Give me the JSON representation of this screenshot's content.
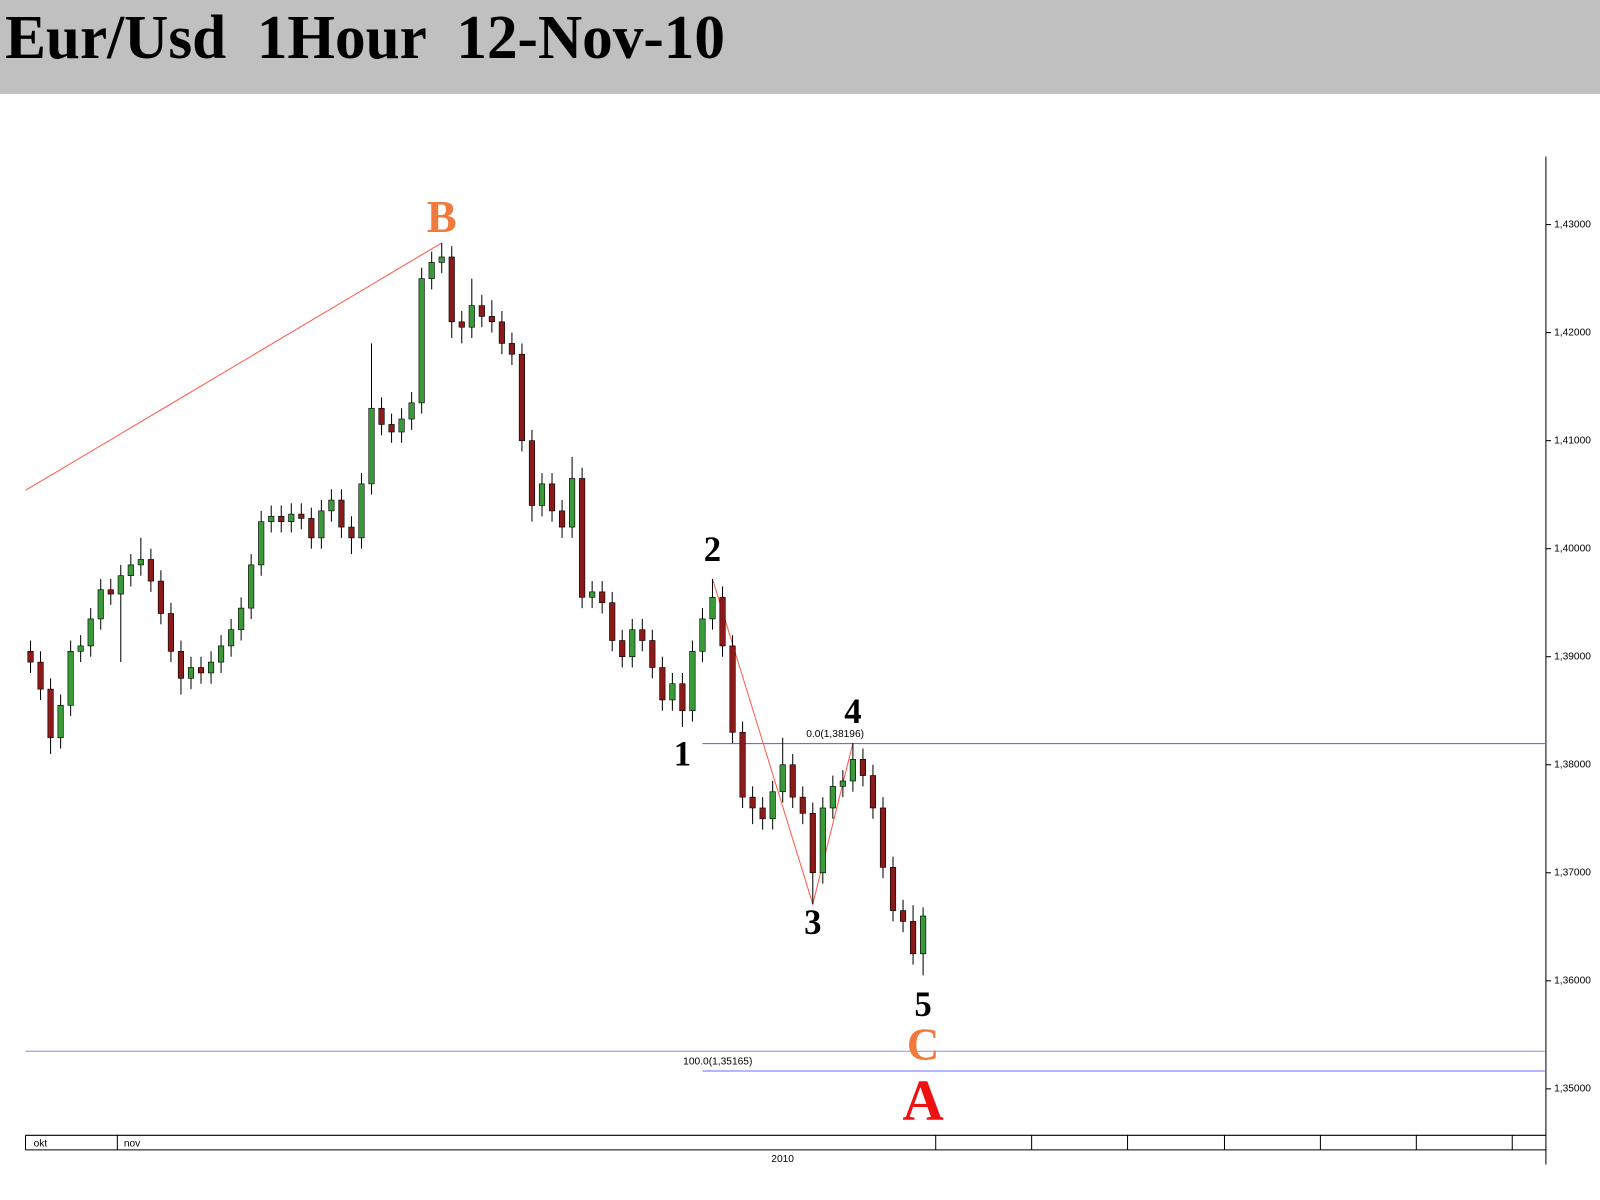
{
  "chart_data": {
    "type": "candlestick",
    "title": "Eur/Usd  1Hour  12-Nov-10",
    "categories": [
      "okt",
      null,
      null,
      null,
      null,
      null,
      null,
      null,
      null,
      "nov",
      null,
      null,
      null,
      null,
      null,
      null,
      null,
      null,
      null,
      null,
      null,
      null,
      null,
      null,
      null,
      null,
      null,
      null,
      null,
      null,
      null,
      null,
      null,
      null,
      null,
      null,
      null,
      null,
      null,
      null,
      null,
      null,
      null,
      null,
      null,
      null,
      null,
      null,
      null,
      null,
      null,
      null,
      null,
      null,
      null,
      null,
      null,
      null,
      null,
      null,
      null,
      null,
      null,
      null,
      null,
      null,
      null,
      null,
      null,
      null,
      null,
      null,
      null,
      null,
      null,
      null,
      null,
      null,
      null,
      null,
      null,
      null,
      null,
      null,
      null,
      null,
      null,
      null,
      null,
      null
    ],
    "x_sublabel": "2010",
    "open": [
      1.3905,
      1.3895,
      1.387,
      1.3825,
      1.3855,
      1.3905,
      1.391,
      1.3935,
      1.3962,
      1.3958,
      1.3975,
      1.3985,
      1.399,
      1.397,
      1.394,
      1.3905,
      1.388,
      1.389,
      1.3885,
      1.3895,
      1.391,
      1.3925,
      1.3945,
      1.3985,
      1.4025,
      1.403,
      1.4025,
      1.4032,
      1.4028,
      1.401,
      1.4035,
      1.4045,
      1.402,
      1.401,
      1.406,
      1.413,
      1.4115,
      1.4108,
      1.412,
      1.4135,
      1.425,
      1.4265,
      1.427,
      1.421,
      1.4205,
      1.4225,
      1.4215,
      1.421,
      1.419,
      1.418,
      1.41,
      1.404,
      1.406,
      1.4035,
      1.402,
      1.4065,
      1.3955,
      1.396,
      1.395,
      1.3915,
      1.39,
      1.3925,
      1.3915,
      1.389,
      1.386,
      1.3875,
      1.385,
      1.3905,
      1.3935,
      1.3955,
      1.391,
      1.383,
      1.377,
      1.376,
      1.375,
      1.3775,
      1.38,
      1.377,
      1.3755,
      1.37,
      1.376,
      1.378,
      1.3785,
      1.3805,
      1.379,
      1.376,
      1.3705,
      1.3665,
      1.3655,
      1.3625
    ],
    "high": [
      1.3915,
      1.3905,
      1.388,
      1.3865,
      1.3915,
      1.392,
      1.3945,
      1.3972,
      1.3972,
      1.3985,
      1.3995,
      1.401,
      1.4,
      1.398,
      1.395,
      1.3915,
      1.39,
      1.39,
      1.3905,
      1.392,
      1.3935,
      1.3955,
      1.3995,
      1.4035,
      1.404,
      1.404,
      1.4042,
      1.4042,
      1.4038,
      1.4045,
      1.4055,
      1.4055,
      1.403,
      1.407,
      1.419,
      1.414,
      1.4125,
      1.413,
      1.4145,
      1.426,
      1.4275,
      1.4283,
      1.428,
      1.422,
      1.425,
      1.4235,
      1.423,
      1.422,
      1.42,
      1.419,
      1.411,
      1.407,
      1.407,
      1.4045,
      1.4085,
      1.4075,
      1.397,
      1.397,
      1.396,
      1.3925,
      1.3935,
      1.3935,
      1.3925,
      1.39,
      1.3885,
      1.3885,
      1.3915,
      1.3945,
      1.3972,
      1.3965,
      1.392,
      1.384,
      1.378,
      1.377,
      1.3785,
      1.3825,
      1.381,
      1.378,
      1.3765,
      1.377,
      1.379,
      1.3795,
      1.382,
      1.3815,
      1.38,
      1.377,
      1.3715,
      1.3675,
      1.367,
      1.3668
    ],
    "low": [
      1.3885,
      1.386,
      1.381,
      1.3815,
      1.3845,
      1.3895,
      1.39,
      1.3925,
      1.3948,
      1.3895,
      1.3965,
      1.3975,
      1.396,
      1.393,
      1.3895,
      1.3865,
      1.387,
      1.3875,
      1.3875,
      1.3885,
      1.39,
      1.3915,
      1.3935,
      1.3975,
      1.4015,
      1.4015,
      1.4015,
      1.4018,
      1.4,
      1.4,
      1.4025,
      1.401,
      1.3995,
      1.4,
      1.405,
      1.4105,
      1.4098,
      1.4098,
      1.411,
      1.4125,
      1.424,
      1.4255,
      1.4195,
      1.419,
      1.4195,
      1.4205,
      1.42,
      1.418,
      1.417,
      1.409,
      1.4025,
      1.403,
      1.4025,
      1.401,
      1.401,
      1.3945,
      1.3945,
      1.394,
      1.3905,
      1.389,
      1.389,
      1.3905,
      1.388,
      1.385,
      1.385,
      1.3835,
      1.384,
      1.3895,
      1.3925,
      1.39,
      1.382,
      1.376,
      1.3745,
      1.374,
      1.374,
      1.3765,
      1.376,
      1.3745,
      1.3671,
      1.369,
      1.375,
      1.377,
      1.3775,
      1.378,
      1.375,
      1.3695,
      1.3655,
      1.3645,
      1.3615,
      1.3605
    ],
    "close": [
      1.3895,
      1.387,
      1.3825,
      1.3855,
      1.3905,
      1.391,
      1.3935,
      1.3962,
      1.3958,
      1.3975,
      1.3985,
      1.399,
      1.397,
      1.394,
      1.3905,
      1.388,
      1.389,
      1.3885,
      1.3895,
      1.391,
      1.3925,
      1.3945,
      1.3985,
      1.4025,
      1.403,
      1.4025,
      1.4032,
      1.4028,
      1.401,
      1.4035,
      1.4045,
      1.402,
      1.401,
      1.406,
      1.413,
      1.4115,
      1.4108,
      1.412,
      1.4135,
      1.425,
      1.4265,
      1.427,
      1.421,
      1.4205,
      1.4225,
      1.4215,
      1.421,
      1.419,
      1.418,
      1.41,
      1.404,
      1.406,
      1.4035,
      1.402,
      1.4065,
      1.3955,
      1.396,
      1.395,
      1.3915,
      1.39,
      1.3925,
      1.3915,
      1.389,
      1.386,
      1.3875,
      1.385,
      1.3905,
      1.3935,
      1.3955,
      1.391,
      1.383,
      1.377,
      1.376,
      1.375,
      1.3775,
      1.38,
      1.377,
      1.3755,
      1.37,
      1.376,
      1.378,
      1.3785,
      1.3805,
      1.379,
      1.376,
      1.3705,
      1.3665,
      1.3655,
      1.3625,
      1.366
    ],
    "up_color": "#3a9a3a",
    "down_color": "#8b1a1a",
    "xlim": [
      -0.5,
      151
    ],
    "ylim": [
      1.3457,
      1.4363
    ],
    "yticks": [
      {
        "value": 1.35,
        "label": "1,35000"
      },
      {
        "value": 1.36,
        "label": "1,36000"
      },
      {
        "value": 1.37,
        "label": "1,37000"
      },
      {
        "value": 1.38,
        "label": "1,38000"
      },
      {
        "value": 1.39,
        "label": "1,39000"
      },
      {
        "value": 1.4,
        "label": "1,40000"
      },
      {
        "value": 1.41,
        "label": "1,41000"
      },
      {
        "value": 1.42,
        "label": "1,42000"
      },
      {
        "value": 1.43,
        "label": "1,43000"
      }
    ],
    "annotations": [
      {
        "text": "B",
        "x": 41,
        "y": 1.4303,
        "color": "#f07a3c"
      },
      {
        "text": "1",
        "x": 65,
        "y": 1.3807,
        "color": "#000000"
      },
      {
        "text": "2",
        "x": 68,
        "y": 1.3996,
        "color": "#000000"
      },
      {
        "text": "3",
        "x": 78,
        "y": 1.3651,
        "color": "#000000"
      },
      {
        "text": "4",
        "x": 82,
        "y": 1.3846,
        "color": "#000000"
      },
      {
        "text": "5",
        "x": 89,
        "y": 1.3575,
        "color": "#000000"
      },
      {
        "text": "C",
        "x": 89,
        "y": 1.3537,
        "color": "#f07a3c"
      },
      {
        "text": "A",
        "x": 89,
        "y": 1.3484,
        "color": "#ee1111"
      }
    ],
    "trend_lines": [
      {
        "color": "#ff5a4a",
        "x": [
          -0.5,
          41
        ],
        "y": [
          1.4054,
          1.4283
        ]
      },
      {
        "color": "#ff5a4a",
        "x": [
          68,
          78,
          82
        ],
        "y": [
          1.3972,
          1.3671,
          1.382
        ]
      }
    ],
    "levels": [
      {
        "value": 1.38196,
        "label": "0.0(1,38196)",
        "x_from": 67,
        "color": "#6a6aff"
      },
      {
        "value": 1.35348,
        "x_from": -0.5,
        "color": "#8a8aee"
      },
      {
        "value": 1.35165,
        "label": "100.0(1,35165)",
        "x_from": 67,
        "color": "#6a6aff"
      }
    ]
  }
}
